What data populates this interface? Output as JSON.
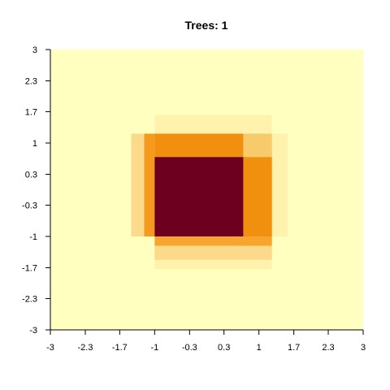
{
  "chart_data": {
    "type": "heatmap",
    "title": "Trees: 1",
    "xlabel": "",
    "ylabel": "",
    "xlim": [
      -3,
      3
    ],
    "ylim": [
      -3,
      3
    ],
    "x_ticks": [
      -3,
      -2.33,
      -1.67,
      -1,
      -0.33,
      0.33,
      1,
      1.67,
      2.33,
      3
    ],
    "x_tick_labels": [
      "-3",
      "-2.3",
      "-1.7",
      "-1",
      "-0.3",
      "0.3",
      "1",
      "1.7",
      "2.3",
      "3"
    ],
    "y_ticks": [
      -3,
      -2.33,
      -1.67,
      -1,
      -0.33,
      0.33,
      1,
      1.67,
      2.33,
      3
    ],
    "y_tick_labels": [
      "-3",
      "-2.3",
      "-1.7",
      "-1",
      "-0.3",
      "0.3",
      "1",
      "1.7",
      "2.3",
      "3"
    ],
    "background_color": "#FFFFC0",
    "regions": [
      {
        "x0": -1.0,
        "x1": 1.25,
        "y0": -1.7,
        "y1": 1.6,
        "color": "#FFF2AC"
      },
      {
        "x0": -1.45,
        "x1": 1.55,
        "y0": -1.0,
        "y1": 1.2,
        "color": "#FFF2AC"
      },
      {
        "x0": -1.45,
        "x1": -1.2,
        "y0": -1.0,
        "y1": 1.2,
        "color": "#FBDB8B"
      },
      {
        "x0": -1.0,
        "x1": 1.25,
        "y0": -1.5,
        "y1": -1.2,
        "color": "#FBDB8B"
      },
      {
        "x0": 0.7,
        "x1": 1.25,
        "y0": 0.7,
        "y1": 1.2,
        "color": "#F7CA6B"
      },
      {
        "x0": -1.2,
        "x1": -1.0,
        "y0": -1.0,
        "y1": 1.2,
        "color": "#F59A1C"
      },
      {
        "x0": -1.0,
        "x1": 0.7,
        "y0": 0.7,
        "y1": 1.2,
        "color": "#F0900E"
      },
      {
        "x0": 0.7,
        "x1": 1.25,
        "y0": -1.0,
        "y1": 0.7,
        "color": "#F0900E"
      },
      {
        "x0": -1.0,
        "x1": 1.25,
        "y0": -1.2,
        "y1": -1.0,
        "color": "#F7A52E"
      },
      {
        "x0": -1.0,
        "x1": 0.7,
        "y0": -1.0,
        "y1": 0.7,
        "color": "#6D001E"
      }
    ]
  }
}
